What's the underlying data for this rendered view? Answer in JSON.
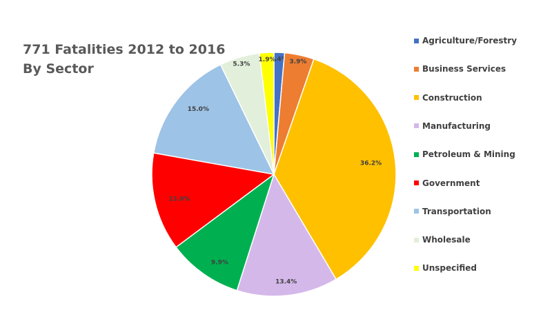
{
  "chart_data": {
    "type": "pie",
    "title_line1": "771 Fatalities 2012 to 2016",
    "title_line2": "By Sector",
    "legend_position": "right",
    "slices": [
      {
        "name": "Agriculture/Forestry",
        "value": 1.4,
        "label": "1.4%",
        "color": "#4472C4"
      },
      {
        "name": "Business Services",
        "value": 3.9,
        "label": "3.9%",
        "color": "#ED7D31"
      },
      {
        "name": "Construction",
        "value": 36.2,
        "label": "36.2%",
        "color": "#FFC000"
      },
      {
        "name": "Manufacturing",
        "value": 13.4,
        "label": "13.4%",
        "color": "#D5B8EA"
      },
      {
        "name": "Petroleum & Mining",
        "value": 9.9,
        "label": "9.9%",
        "color": "#00B050"
      },
      {
        "name": "Government",
        "value": 13.0,
        "label": "13.0%",
        "color": "#FF0000"
      },
      {
        "name": "Transportation",
        "value": 15.0,
        "label": "15.0%",
        "color": "#9DC3E6"
      },
      {
        "name": "Wholesale",
        "value": 5.3,
        "label": "5.3%",
        "color": "#E2EFDA"
      },
      {
        "name": "Unspecified",
        "value": 1.9,
        "label": "1.9%",
        "color": "#FFFF00"
      }
    ]
  }
}
